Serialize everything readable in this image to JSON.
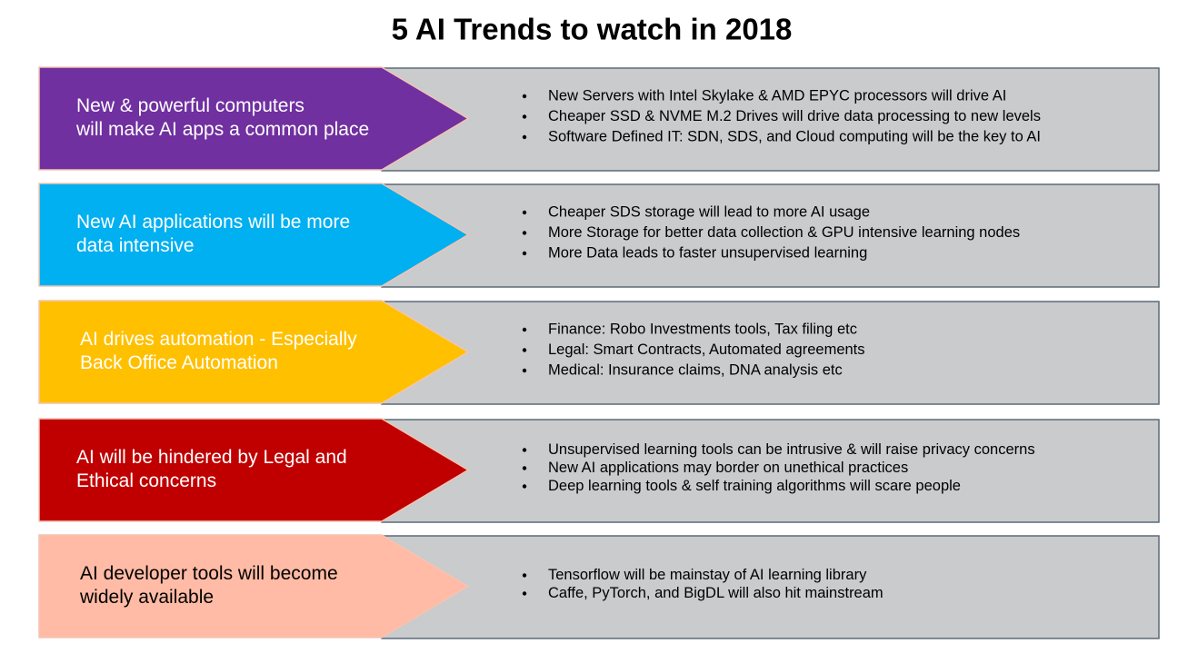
{
  "title": "5 AI Trends to watch in 2018",
  "trends": [
    {
      "label": [
        "New & powerful computers",
        "will make AI apps a common place"
      ],
      "points": [
        "New Servers with Intel Skylake & AMD EPYC processors will drive AI",
        "Cheaper SSD & NVME M.2 Drives will drive data processing to new levels",
        "Software Defined IT: SDN, SDS, and Cloud computing will be the key to AI"
      ]
    },
    {
      "label": [
        "New AI applications will be more",
        "data intensive"
      ],
      "points": [
        "Cheaper SDS storage will lead to more AI usage",
        "More Storage for better data collection & GPU intensive learning nodes",
        "More Data leads to faster unsupervised learning"
      ]
    },
    {
      "label": [
        "AI drives automation - Especially",
        "Back Office Automation"
      ],
      "points": [
        "Finance: Robo Investments tools, Tax filing etc",
        "Legal: Smart Contracts, Automated agreements",
        "Medical: Insurance claims, DNA analysis etc"
      ]
    },
    {
      "label": [
        "AI will be hindered by Legal and",
        "Ethical concerns"
      ],
      "points": [
        "Unsupervised learning tools can be intrusive & will raise privacy concerns",
        "New AI applications may border on unethical practices",
        "Deep learning tools & self training algorithms will scare people"
      ]
    },
    {
      "label": [
        "AI developer tools will become",
        "widely available"
      ],
      "points": [
        "Tensorflow will be mainstay of AI learning library",
        "Caffe, PyTorch, and BigDL will also hit mainstream"
      ]
    }
  ]
}
